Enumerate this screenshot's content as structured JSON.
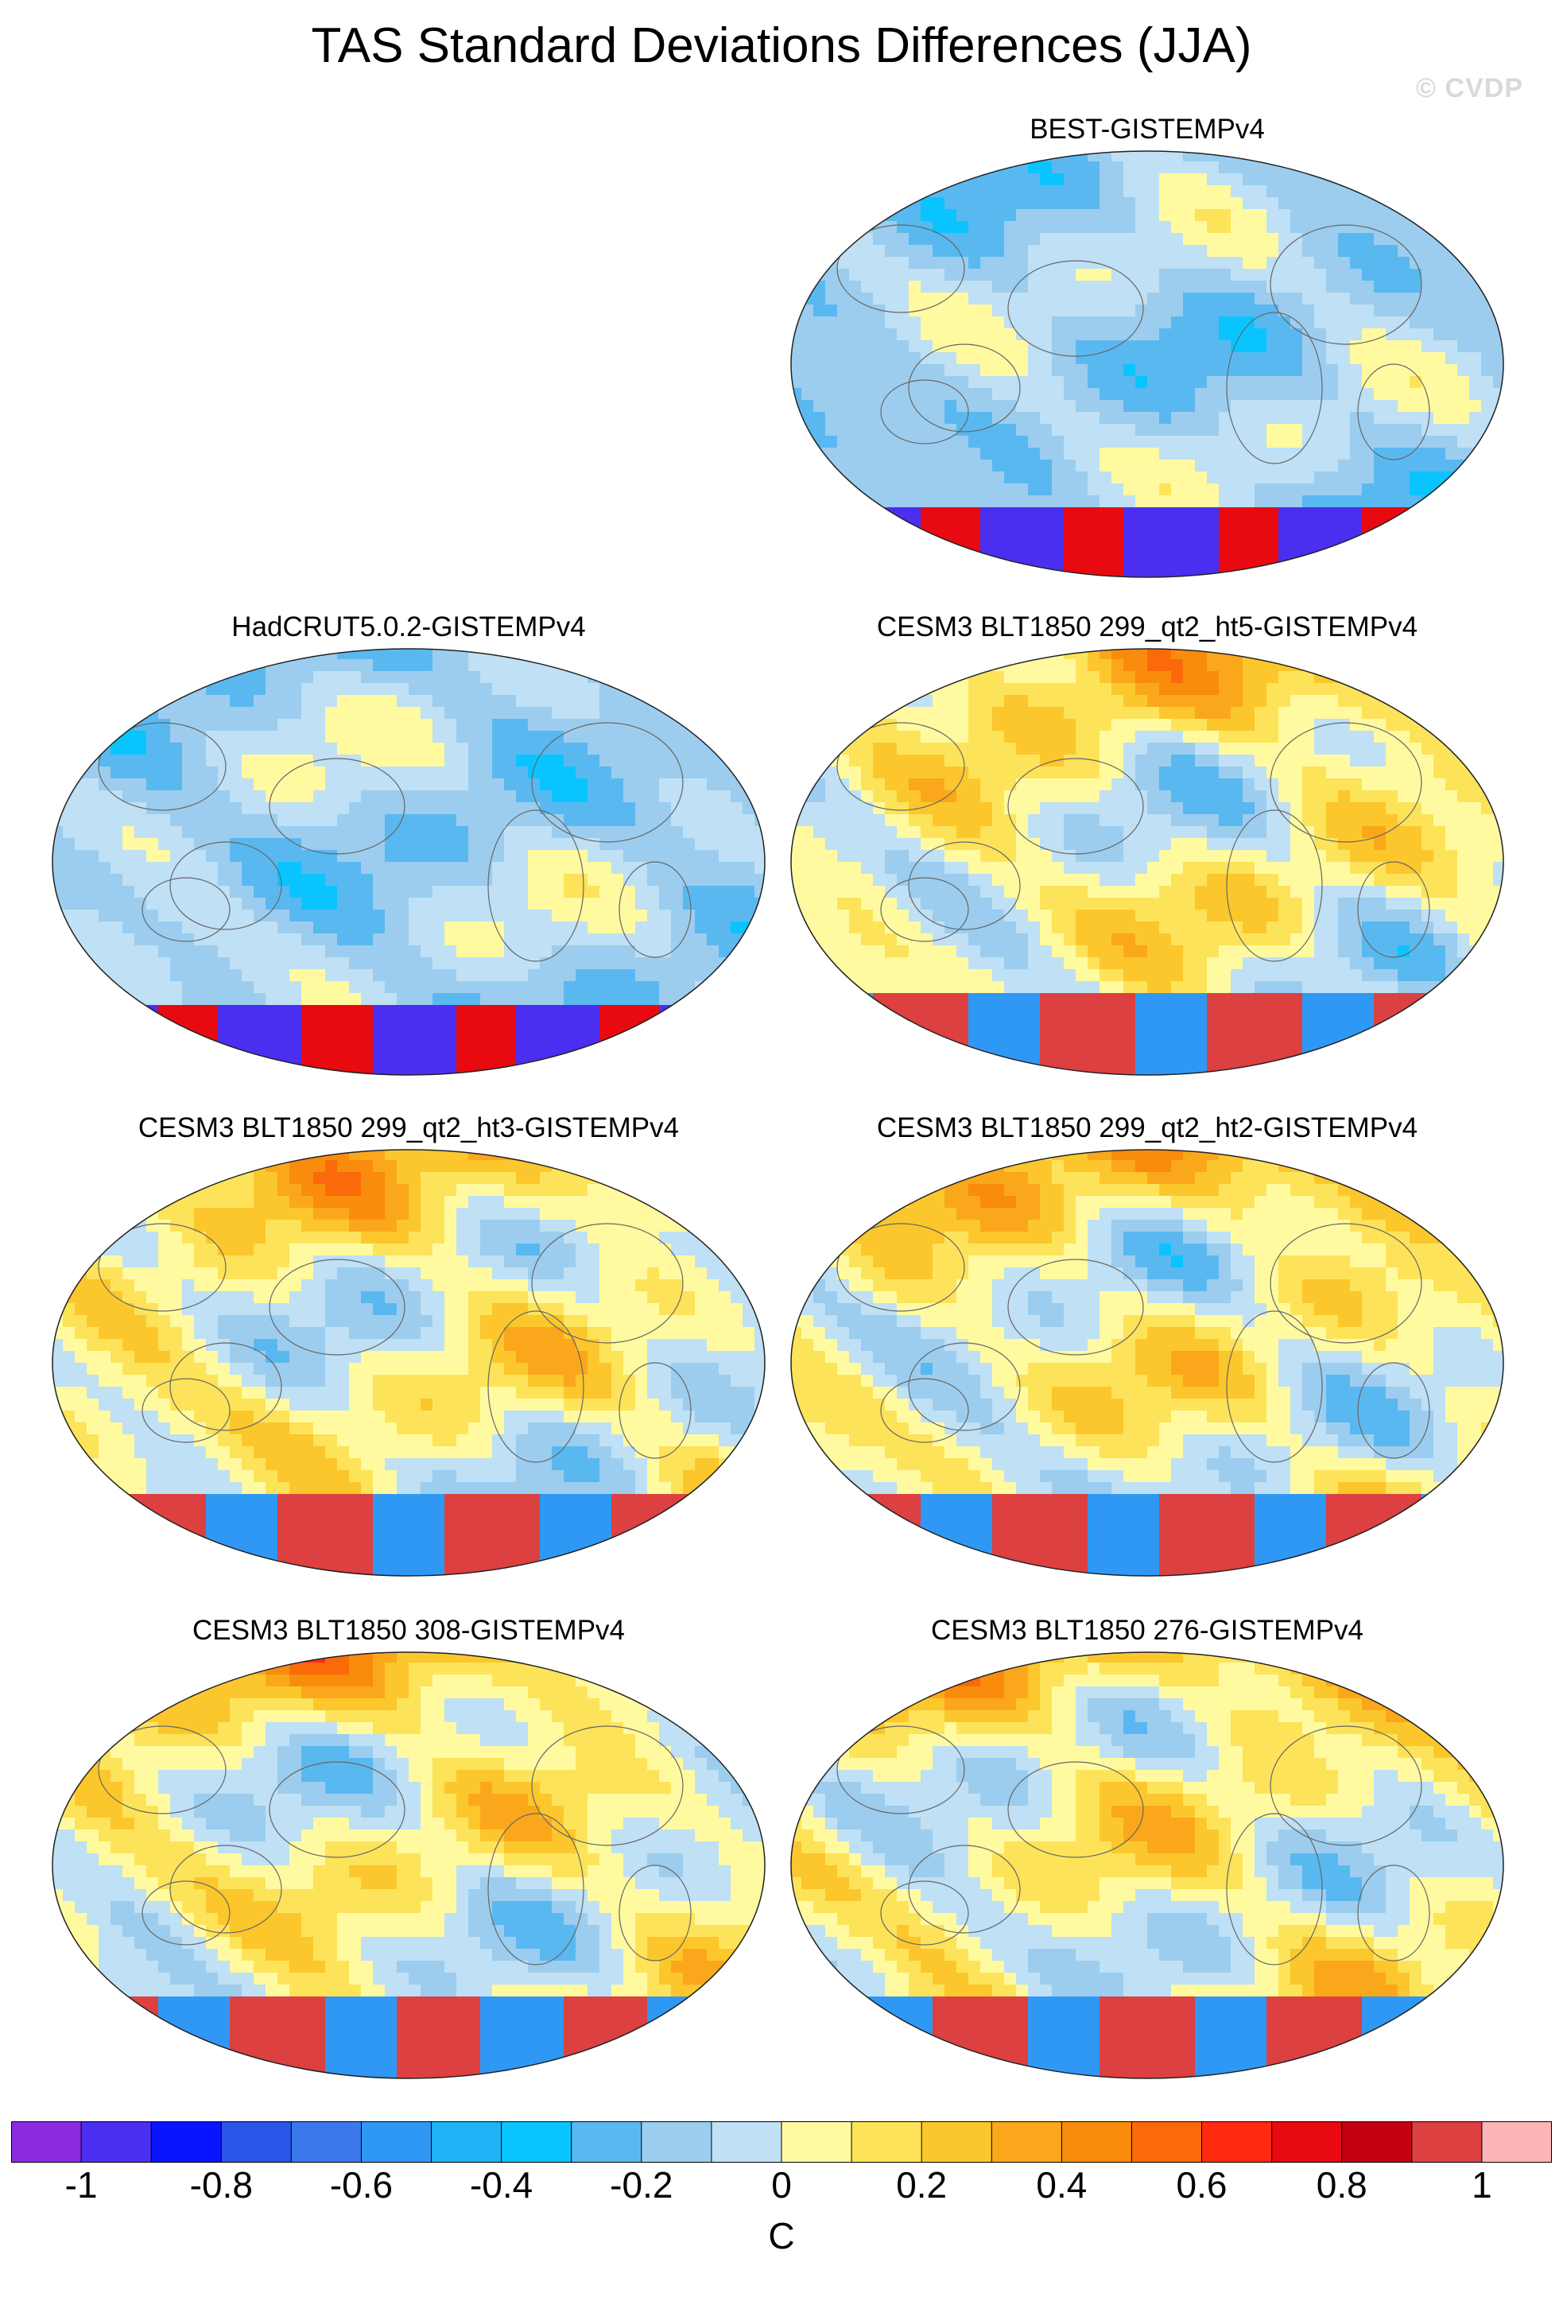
{
  "title": "TAS Standard Deviations Differences (JJA)",
  "copyright": "© CVDP",
  "panels": [
    {
      "id": "best",
      "label": "BEST-GISTEMPv4",
      "style": "obs"
    },
    {
      "id": "hadcrut",
      "label": "HadCRUT5.0.2-GISTEMPv4",
      "style": "obs"
    },
    {
      "id": "ht5",
      "label": "CESM3 BLT1850 299_qt2_ht5-GISTEMPv4",
      "style": "model"
    },
    {
      "id": "ht3",
      "label": "CESM3 BLT1850 299_qt2_ht3-GISTEMPv4",
      "style": "model"
    },
    {
      "id": "ht2",
      "label": "CESM3 BLT1850 299_qt2_ht2-GISTEMPv4",
      "style": "model"
    },
    {
      "id": "r308",
      "label": "CESM3 BLT1850 308-GISTEMPv4",
      "style": "model"
    },
    {
      "id": "r276",
      "label": "CESM3 BLT1850 276-GISTEMPv4",
      "style": "model"
    }
  ],
  "colorbar": {
    "units": "C",
    "tick_labels": [
      "-1",
      "-0.8",
      "-0.6",
      "-0.4",
      "-0.2",
      "0",
      "0.2",
      "0.4",
      "0.6",
      "0.8",
      "1"
    ],
    "colors": [
      "#8a2be2",
      "#4a2ff0",
      "#0a14ff",
      "#2b55e8",
      "#3a78ec",
      "#2f98f5",
      "#1fb2f5",
      "#0ac4ff",
      "#5ab8f0",
      "#9ccdee",
      "#bfe0f5",
      "#fffaa0",
      "#fde35a",
      "#fcc72c",
      "#fba71c",
      "#f98c0c",
      "#fa6a0a",
      "#ff2a10",
      "#e80a10",
      "#c40010",
      "#dc4040",
      "#ffb4b8"
    ]
  },
  "chart_data": {
    "type": "heatmap",
    "title": "TAS Standard Deviations Differences (JJA)",
    "units": "C",
    "value_range": [
      -1,
      1
    ],
    "contour_interval": 0.1,
    "panel_labels": [
      "BEST-GISTEMPv4",
      "HadCRUT5.0.2-GISTEMPv4",
      "CESM3 BLT1850 299_qt2_ht5-GISTEMPv4",
      "CESM3 BLT1850 299_qt2_ht3-GISTEMPv4",
      "CESM3 BLT1850 299_qt2_ht2-GISTEMPv4",
      "CESM3 BLT1850 308-GISTEMPv4",
      "CESM3 BLT1850 276-GISTEMPv4"
    ]
  }
}
